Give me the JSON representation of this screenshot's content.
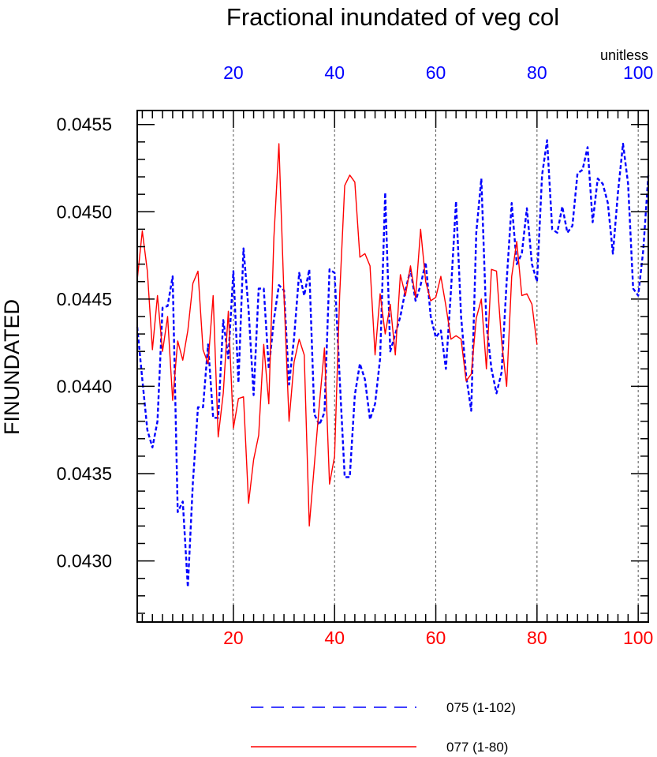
{
  "chart_data": {
    "type": "line",
    "title": "Fractional inundated of veg col",
    "ylabel": "FINUNDATED",
    "units": "unitless",
    "ylim": [
      0.04265,
      0.04558
    ],
    "y_ticks": [
      0.043,
      0.0435,
      0.044,
      0.0445,
      0.045,
      0.0455
    ],
    "y_tick_labels": [
      "0.0430",
      "0.0435",
      "0.0440",
      "0.0445",
      "0.0450",
      "0.0455"
    ],
    "grid": "vertical dashed at x = 20, 40, 60, 80, 100",
    "axes": {
      "bottom": {
        "color": "#ff0000",
        "xlim": [
          1,
          102
        ],
        "ticks": [
          20,
          40,
          60,
          80,
          100
        ],
        "tick_labels": [
          "20",
          "40",
          "60",
          "80",
          "100"
        ]
      },
      "top": {
        "color": "#0000ff",
        "xlim": [
          1,
          102
        ],
        "ticks": [
          20,
          40,
          60,
          80,
          100
        ],
        "tick_labels": [
          "20",
          "40",
          "60",
          "80",
          "100"
        ]
      }
    },
    "legend_position": "bottom-center",
    "series": [
      {
        "name": "075 (1-102)",
        "color": "#0000ff",
        "dash": "dashed",
        "x_start": 1,
        "values": [
          0.04434,
          0.04404,
          0.04375,
          0.04365,
          0.0438,
          0.04445,
          0.04446,
          0.04463,
          0.04328,
          0.04334,
          0.04285,
          0.04345,
          0.04388,
          0.04388,
          0.04424,
          0.04382,
          0.04382,
          0.04438,
          0.04416,
          0.04466,
          0.04402,
          0.04479,
          0.04444,
          0.04395,
          0.04456,
          0.04456,
          0.0441,
          0.04438,
          0.04458,
          0.04455,
          0.04401,
          0.04428,
          0.04465,
          0.04452,
          0.04467,
          0.04384,
          0.04378,
          0.04385,
          0.04467,
          0.04465,
          0.04405,
          0.04348,
          0.04348,
          0.04395,
          0.04413,
          0.04404,
          0.04381,
          0.0439,
          0.04416,
          0.04511,
          0.0442,
          0.0443,
          0.0444,
          0.04455,
          0.04467,
          0.04449,
          0.04458,
          0.04471,
          0.0444,
          0.04428,
          0.04432,
          0.0441,
          0.04455,
          0.04506,
          0.0444,
          0.04406,
          0.04386,
          0.04488,
          0.04519,
          0.04436,
          0.0441,
          0.04396,
          0.04408,
          0.0446,
          0.04505,
          0.0447,
          0.04476,
          0.04502,
          0.0447,
          0.0446,
          0.04521,
          0.04541,
          0.0449,
          0.04488,
          0.04503,
          0.04488,
          0.04492,
          0.04522,
          0.04524,
          0.04537,
          0.04494,
          0.04519,
          0.04516,
          0.04505,
          0.04476,
          0.04511,
          0.04539,
          0.04516,
          0.04456,
          0.04452,
          0.04478,
          0.04521
        ]
      },
      {
        "name": "077 (1-80)",
        "color": "#ff0000",
        "dash": "solid",
        "x_start": 1,
        "values": [
          0.04461,
          0.04489,
          0.04466,
          0.04421,
          0.04452,
          0.0442,
          0.0444,
          0.04392,
          0.04426,
          0.04415,
          0.04432,
          0.04459,
          0.04466,
          0.04421,
          0.04413,
          0.04452,
          0.04371,
          0.04396,
          0.04443,
          0.04376,
          0.04393,
          0.04394,
          0.04333,
          0.04358,
          0.04372,
          0.04424,
          0.0439,
          0.04485,
          0.04539,
          0.04452,
          0.0438,
          0.04414,
          0.04427,
          0.04418,
          0.0432,
          0.04355,
          0.0439,
          0.04422,
          0.04344,
          0.0436,
          0.04452,
          0.04515,
          0.04521,
          0.04517,
          0.04474,
          0.04476,
          0.04469,
          0.04418,
          0.04453,
          0.0443,
          0.04447,
          0.04418,
          0.04464,
          0.04452,
          0.04469,
          0.04451,
          0.0449,
          0.0446,
          0.04449,
          0.04451,
          0.04463,
          0.04446,
          0.04427,
          0.04429,
          0.04427,
          0.04403,
          0.04407,
          0.04439,
          0.0445,
          0.0441,
          0.04467,
          0.04466,
          0.04426,
          0.044,
          0.04463,
          0.04483,
          0.04452,
          0.04453,
          0.04447,
          0.04424
        ]
      }
    ]
  }
}
